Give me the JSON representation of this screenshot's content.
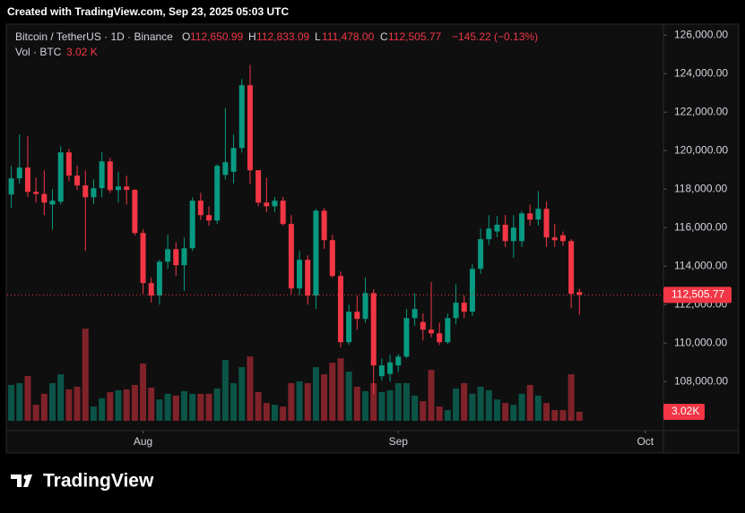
{
  "header": {
    "created": "Created with TradingView.com, Sep 23, 2025 05:03 UTC",
    "symbol": "Bitcoin / TetherUS · 1D · Binance",
    "o_label": "O",
    "o_value": "112,650.99",
    "h_label": "H",
    "h_value": "112,833.09",
    "l_label": "L",
    "l_value": "111,478.00",
    "c_label": "C",
    "c_value": "112,505.77",
    "change": "−145.22 (−0.13%)",
    "vol_label": "Vol · BTC",
    "vol_value": "3.02 K"
  },
  "chart_data": {
    "type": "candlestick",
    "up_color": "#089981",
    "down_color": "#f23645",
    "ylim": [
      105500,
      126500
    ],
    "yticks": [
      {
        "value": 108000,
        "label": "108,000.00"
      },
      {
        "value": 110000,
        "label": "110,000.00"
      },
      {
        "value": 112000,
        "label": "112,000.00"
      },
      {
        "value": 114000,
        "label": "114,000.00"
      },
      {
        "value": 116000,
        "label": "116,000.00"
      },
      {
        "value": 118000,
        "label": "118,000.00"
      },
      {
        "value": 120000,
        "label": "120,000.00"
      },
      {
        "value": 122000,
        "label": "122,000.00"
      },
      {
        "value": 124000,
        "label": "124,000.00"
      },
      {
        "value": 126000,
        "label": "126,000.00"
      }
    ],
    "xlim": [
      -0.5,
      79.2
    ],
    "xticks": [
      {
        "value": 16,
        "label": "Aug"
      },
      {
        "value": 47,
        "label": "Sep"
      },
      {
        "value": 77,
        "label": "Oct"
      }
    ],
    "last_price_label": "112,505.77",
    "candles": {
      "open": [
        117720,
        118560,
        119120,
        117860,
        117750,
        117200,
        117350,
        119910,
        118700,
        118190,
        117580,
        118050,
        119440,
        117950,
        118140,
        117960,
        115720,
        113120,
        112470,
        114230,
        114880,
        114050,
        114930,
        117400,
        116650,
        116370,
        118740,
        118900,
        120140,
        123400,
        118980,
        117300,
        117110,
        117400,
        116190,
        112840,
        114330,
        112470,
        116880,
        115350,
        113490,
        110050,
        111630,
        111260,
        112600,
        108280,
        108400,
        108840,
        109300,
        111300,
        111100,
        110700,
        110510,
        110050,
        111300,
        112100,
        111630,
        113860,
        115400,
        115800,
        116150,
        115300,
        115300,
        116740,
        116420,
        116980,
        115490,
        115600,
        115300,
        112650.99
      ],
      "high": [
        119210,
        120840,
        120750,
        118600,
        118970,
        118000,
        120230,
        120100,
        119210,
        118970,
        118510,
        119910,
        119630,
        118900,
        118700,
        118000,
        115900,
        113400,
        114330,
        115630,
        115250,
        115490,
        117580,
        117810,
        117100,
        119300,
        122230,
        120840,
        123720,
        124460,
        118980,
        118600,
        117600,
        117600,
        116650,
        114790,
        114560,
        116980,
        117020,
        115630,
        113720,
        112000,
        112470,
        113400,
        112800,
        109210,
        109400,
        109440,
        111770,
        112600,
        111540,
        113170,
        111070,
        111540,
        113050,
        112470,
        114100,
        115960,
        116650,
        116600,
        116650,
        116650,
        116880,
        117200,
        117900,
        117350,
        116200,
        115800,
        115400,
        112833.09
      ],
      "low": [
        117020,
        118280,
        117600,
        117300,
        116650,
        115900,
        117210,
        118400,
        117950,
        114790,
        117210,
        117580,
        117800,
        117300,
        117200,
        115600,
        112560,
        112100,
        112000,
        113860,
        113500,
        112700,
        114790,
        116400,
        116100,
        116200,
        118500,
        118300,
        119900,
        118280,
        117110,
        116800,
        116800,
        116100,
        112560,
        112500,
        112000,
        111770,
        114900,
        113400,
        109770,
        109910,
        110700,
        111070,
        107350,
        108050,
        108000,
        108500,
        109210,
        110900,
        110140,
        110300,
        109900,
        109960,
        110980,
        111300,
        111400,
        113600,
        115100,
        115500,
        115000,
        114420,
        115000,
        116100,
        116100,
        115000,
        115000,
        115050,
        111820,
        111478
      ],
      "close": [
        118560,
        119120,
        117860,
        117750,
        117300,
        117400,
        119910,
        118700,
        118190,
        117580,
        118050,
        119440,
        117950,
        118140,
        117960,
        115720,
        113120,
        112470,
        114230,
        114880,
        114050,
        114930,
        117400,
        116650,
        116370,
        119210,
        119400,
        120140,
        123400,
        118980,
        117300,
        117110,
        117400,
        116190,
        112840,
        114330,
        112470,
        116880,
        115350,
        113490,
        110050,
        111630,
        111260,
        112600,
        108840,
        108840,
        109000,
        109300,
        111300,
        111770,
        110700,
        110510,
        110050,
        111300,
        112100,
        111630,
        113860,
        115400,
        115950,
        116150,
        115300,
        116000,
        116740,
        116420,
        116980,
        115490,
        115350,
        115300,
        112560,
        112505.77
      ]
    },
    "volume": {
      "ylim": [
        0,
        60
      ],
      "axis_label": "3.02K",
      "values": [
        12.1,
        12.7,
        15.1,
        5.4,
        9.1,
        12.7,
        15.7,
        10.6,
        11.5,
        31.1,
        4.8,
        7.6,
        9.7,
        10.3,
        10.6,
        12.1,
        19.3,
        11.2,
        7.2,
        9.1,
        8.5,
        10.0,
        9.1,
        9.1,
        9.1,
        10.9,
        20.5,
        12.7,
        18.1,
        21.7,
        9.7,
        6.0,
        5.4,
        4.8,
        12.7,
        13.3,
        12.7,
        18.1,
        15.7,
        19.6,
        21.1,
        16.6,
        11.5,
        10.0,
        12.7,
        9.7,
        10.3,
        12.7,
        12.7,
        8.5,
        6.6,
        17.2,
        4.8,
        3.6,
        10.9,
        12.7,
        9.1,
        11.5,
        10.3,
        7.2,
        6.0,
        5.4,
        9.1,
        12.1,
        8.5,
        6.0,
        3.6,
        3.6,
        15.7,
        3.02
      ]
    }
  },
  "footer": {
    "brand": "TradingView"
  }
}
